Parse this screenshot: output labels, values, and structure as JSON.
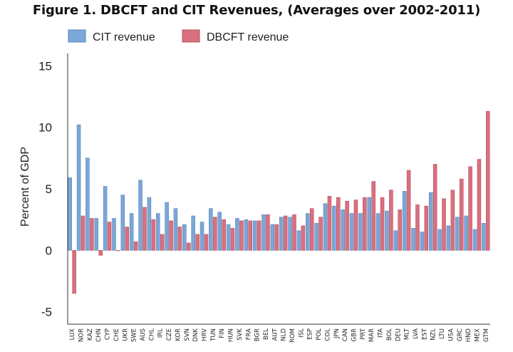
{
  "chart_data": {
    "type": "bar",
    "title": "Figure 1. DBCFT and CIT Revenues, (Averages over 2002-2011)",
    "xlabel": "",
    "ylabel": "Percent of GDP",
    "ylim": [
      -6,
      16
    ],
    "yticks": [
      -5,
      0,
      5,
      10,
      15
    ],
    "grid": false,
    "legend_position": "top-left",
    "categories": [
      "LUX",
      "NOR",
      "KAZ",
      "CHN",
      "CYP",
      "CHE",
      "UKR",
      "SWE",
      "AUS",
      "CHL",
      "IRL",
      "CZE",
      "KOR",
      "SVN",
      "DNK",
      "HRV",
      "TUN",
      "FIN",
      "HUN",
      "SVK",
      "FRA",
      "BGR",
      "BEL",
      "AUT",
      "NLD",
      "ROM",
      "ISL",
      "ESP",
      "POL",
      "COL",
      "JPN",
      "CAN",
      "GBR",
      "PRT",
      "MAR",
      "ITA",
      "BOL",
      "DEU",
      "MLT",
      "LVA",
      "EST",
      "NZL",
      "LTU",
      "USA",
      "GRC",
      "HND",
      "MEX",
      "GTM"
    ],
    "series": [
      {
        "name": "CIT revenue",
        "color": "#7ba7d7",
        "values": [
          5.9,
          10.2,
          7.5,
          2.6,
          5.2,
          2.6,
          4.5,
          3.0,
          5.7,
          4.3,
          3.0,
          3.9,
          3.4,
          2.1,
          2.8,
          2.3,
          3.4,
          3.1,
          2.1,
          2.6,
          2.5,
          2.4,
          2.9,
          2.1,
          2.7,
          2.7,
          1.6,
          3.0,
          2.2,
          3.8,
          3.6,
          3.3,
          3.0,
          3.0,
          4.3,
          3.0,
          3.2,
          1.6,
          4.8,
          1.8,
          1.5,
          4.7,
          1.7,
          2.0,
          2.7,
          2.8,
          1.7,
          2.2
        ]
      },
      {
        "name": "DBCFT revenue",
        "color": "#d9707f",
        "values": [
          -3.5,
          2.8,
          2.6,
          -0.4,
          2.3,
          0.0,
          1.9,
          0.7,
          3.5,
          2.5,
          1.3,
          2.4,
          1.9,
          0.6,
          1.3,
          1.3,
          2.7,
          2.5,
          1.8,
          2.4,
          2.4,
          2.4,
          2.9,
          2.1,
          2.8,
          2.9,
          2.0,
          3.4,
          2.7,
          4.4,
          4.3,
          4.0,
          4.1,
          4.3,
          5.6,
          4.3,
          4.9,
          3.3,
          6.5,
          3.7,
          3.6,
          7.0,
          4.2,
          4.9,
          5.8,
          6.8,
          7.4,
          11.3
        ]
      }
    ]
  }
}
